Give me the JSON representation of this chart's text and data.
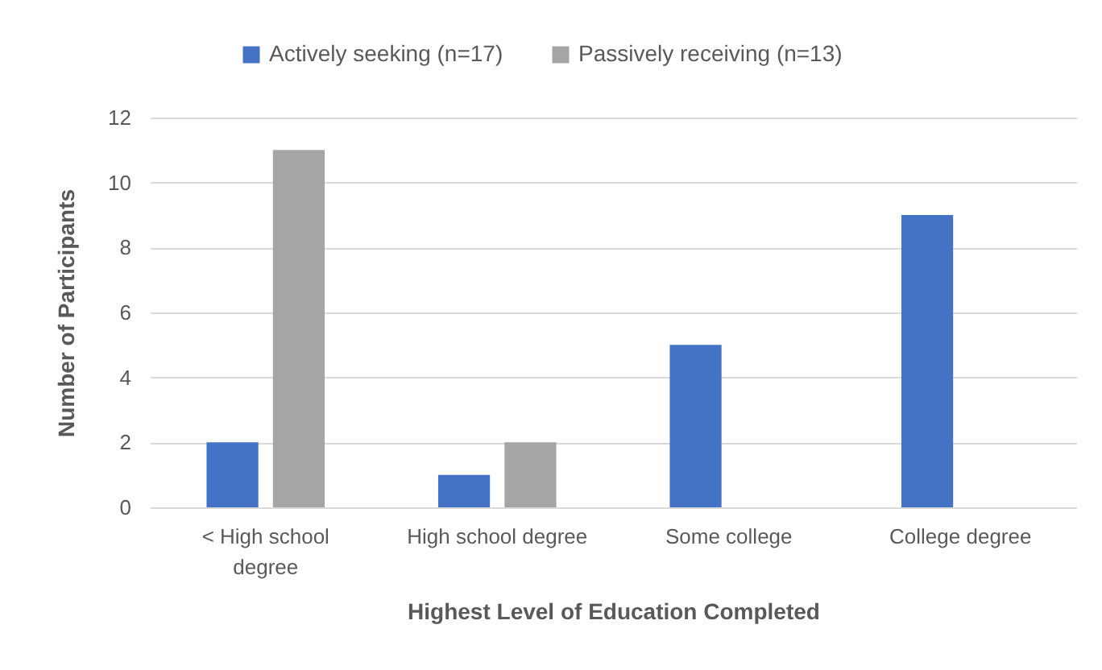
{
  "chart_data": {
    "type": "bar",
    "xlabel": "Highest Level of Education Completed",
    "ylabel": "Number of Participants",
    "categories": [
      "< High school degree",
      "High school degree",
      "Some college",
      "College degree"
    ],
    "series": [
      {
        "name": "Actively seeking (n=17)",
        "color": "#4472c4",
        "values": [
          2,
          1,
          5,
          9
        ]
      },
      {
        "name": "Passively receiving (n=13)",
        "color": "#a5a5a5",
        "values": [
          11,
          2,
          0,
          0
        ]
      }
    ],
    "ylim": [
      0,
      12
    ],
    "yticks": [
      0,
      2,
      4,
      6,
      8,
      10,
      12
    ],
    "grid": "y",
    "legend": "top"
  }
}
